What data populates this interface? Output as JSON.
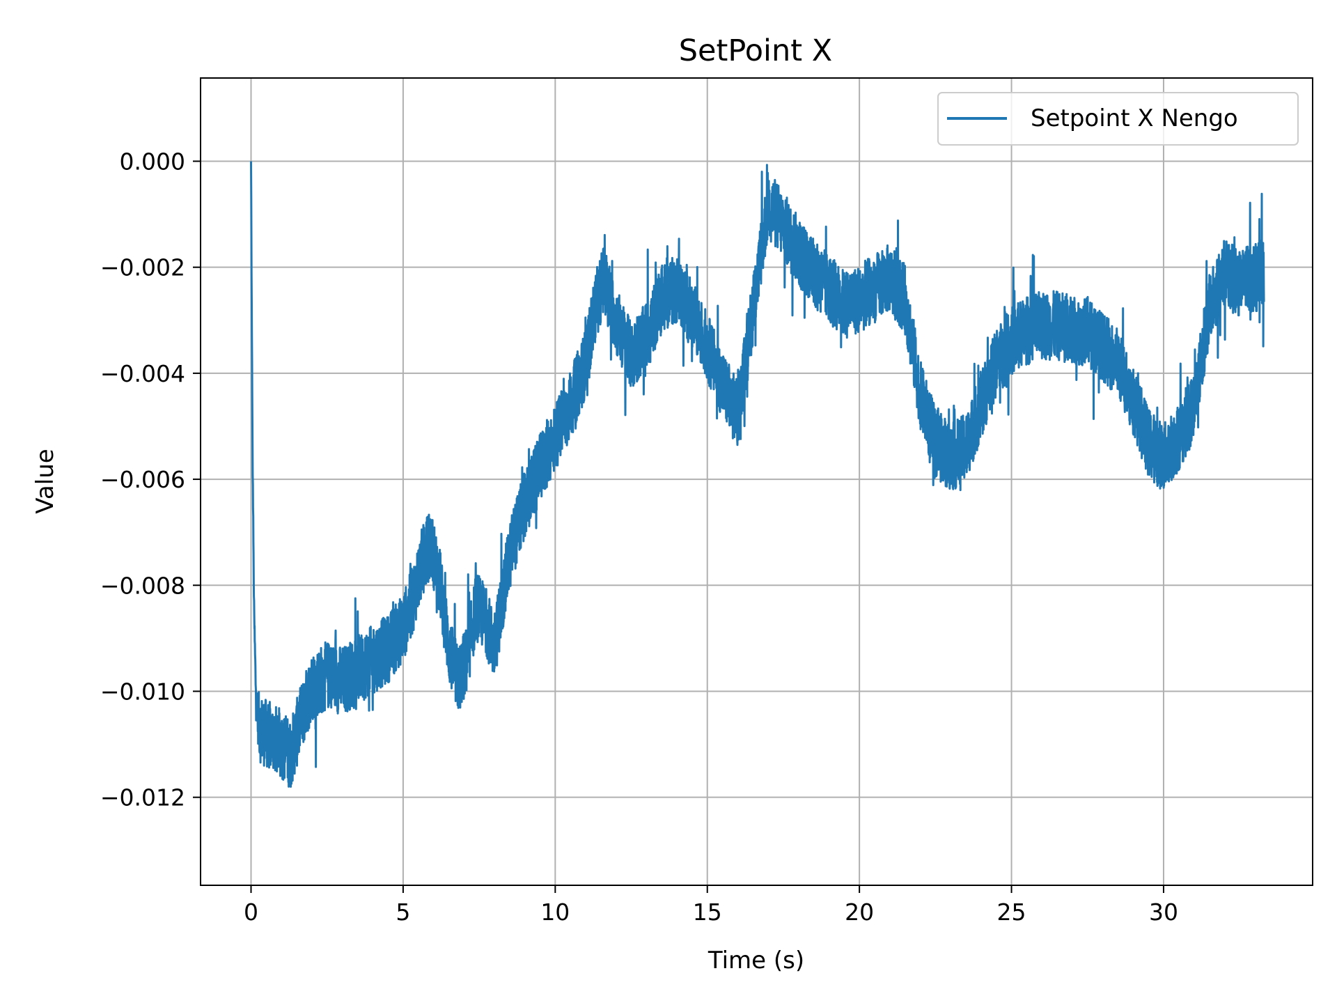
{
  "chart_data": {
    "type": "line",
    "title": "SetPoint X",
    "xlabel": "Time (s)",
    "ylabel": "Value",
    "xlim": [
      -1.66,
      34.9
    ],
    "ylim": [
      -0.01366,
      0.00157
    ],
    "xticks": [
      0,
      5,
      10,
      15,
      20,
      25,
      30
    ],
    "xtick_labels": [
      "0",
      "5",
      "10",
      "15",
      "20",
      "25",
      "30"
    ],
    "yticks": [
      0.0,
      -0.002,
      -0.004,
      -0.006,
      -0.008,
      -0.01,
      -0.012
    ],
    "ytick_labels": [
      "0.000",
      "−0.002",
      "−0.004",
      "−0.006",
      "−0.008",
      "−0.010",
      "−0.012"
    ],
    "grid": true,
    "legend": {
      "placement": "top-right"
    },
    "series": [
      {
        "name": "Setpoint X Nengo",
        "color": "#1f77b4",
        "noise": 0.0013,
        "x": [
          0,
          0.02,
          0.05,
          0.1,
          0.15,
          0.2,
          0.3,
          0.5,
          0.8,
          1.0,
          1.3,
          1.6,
          2.0,
          2.5,
          3.0,
          3.5,
          4.0,
          4.5,
          5.0,
          5.3,
          5.6,
          5.9,
          6.2,
          6.5,
          6.8,
          7.1,
          7.4,
          7.7,
          8.0,
          8.3,
          8.6,
          9.0,
          9.5,
          10.0,
          10.5,
          11.0,
          11.3,
          11.6,
          12.0,
          12.5,
          13.0,
          13.5,
          14.0,
          14.5,
          15.0,
          15.5,
          16.0,
          16.5,
          17.0,
          17.5,
          18.0,
          18.5,
          19.0,
          19.5,
          20.0,
          20.5,
          21.0,
          21.5,
          22.0,
          22.5,
          23.0,
          23.5,
          24.0,
          24.5,
          25.0,
          25.5,
          26.0,
          26.5,
          27.0,
          27.5,
          28.0,
          28.5,
          29.0,
          29.5,
          30.0,
          30.5,
          31.0,
          31.5,
          32.0,
          32.5,
          33.0,
          33.3
        ],
        "y": [
          0.0,
          -0.0025,
          -0.0055,
          -0.0085,
          -0.0098,
          -0.0104,
          -0.0107,
          -0.0108,
          -0.0109,
          -0.011,
          -0.0112,
          -0.0106,
          -0.0099,
          -0.0097,
          -0.0098,
          -0.0096,
          -0.0094,
          -0.0092,
          -0.0088,
          -0.0083,
          -0.0076,
          -0.0072,
          -0.0079,
          -0.0092,
          -0.0098,
          -0.0094,
          -0.0084,
          -0.0086,
          -0.0092,
          -0.0081,
          -0.0072,
          -0.0065,
          -0.0058,
          -0.0052,
          -0.0046,
          -0.0038,
          -0.0028,
          -0.0022,
          -0.003,
          -0.0037,
          -0.0033,
          -0.0026,
          -0.0024,
          -0.0029,
          -0.0035,
          -0.0042,
          -0.0048,
          -0.0028,
          -0.0008,
          -0.0012,
          -0.0017,
          -0.0021,
          -0.0024,
          -0.0027,
          -0.0026,
          -0.0024,
          -0.0022,
          -0.0026,
          -0.0044,
          -0.0053,
          -0.0056,
          -0.0054,
          -0.0046,
          -0.0038,
          -0.0034,
          -0.0032,
          -0.0031,
          -0.0031,
          -0.0032,
          -0.0032,
          -0.0035,
          -0.0038,
          -0.0045,
          -0.0053,
          -0.0056,
          -0.0052,
          -0.0046,
          -0.0028,
          -0.0021,
          -0.0023,
          -0.0022,
          -0.0021
        ]
      }
    ]
  }
}
